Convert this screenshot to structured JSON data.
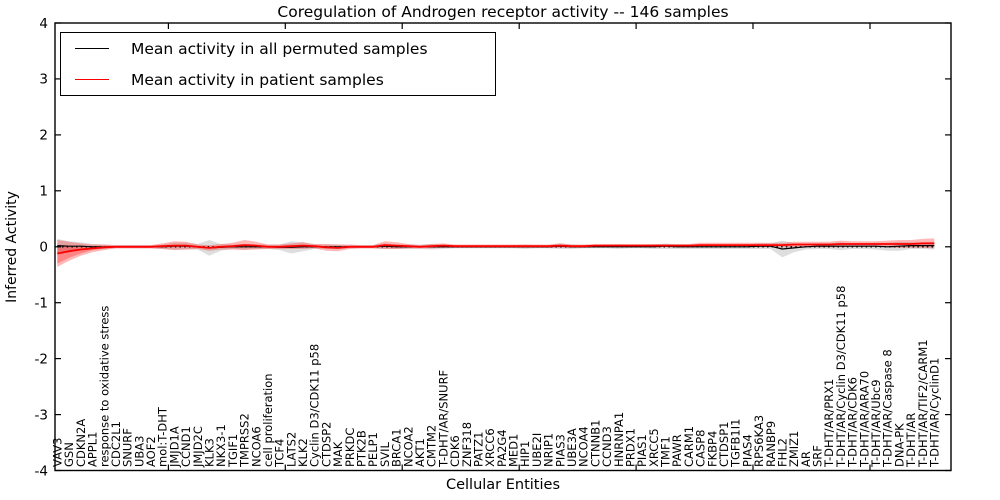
{
  "chart_data": {
    "type": "line",
    "title": "Coregulation of Androgen receptor activity -- 146 samples",
    "xlabel": "Cellular Entities",
    "ylabel": "Inferred Activity",
    "ylim": [
      -4,
      4
    ],
    "ytick_values": [
      4,
      3,
      2,
      1,
      0,
      -1,
      -2,
      -3,
      -4
    ],
    "ytick_labels": [
      "4",
      "3",
      "2",
      "1",
      "0",
      "-1",
      "-2",
      "-3",
      "-4"
    ],
    "xtick_entity_positions": [
      9.5,
      19.5,
      29.5,
      39.5,
      49.5,
      59.5,
      69.5
    ],
    "grid": false,
    "legend_position": "upper left",
    "legend": [
      {
        "label": "Mean activity in all permuted samples",
        "color": "#000000"
      },
      {
        "label": "Mean activity in patient samples",
        "color": "#ff0000"
      }
    ],
    "colors": {
      "permuted_line": "#000000",
      "patient_line": "#ff0000",
      "permuted_fill": "rgba(0,0,0,0.13)",
      "patient_fill": "rgba(255,0,0,0.28)",
      "zero_line": "#000000"
    },
    "entities": [
      "VAV3",
      "GSN",
      "CDKN2A",
      "APPL1",
      "response to oxidative stress",
      "CDC2L1",
      "SNURF",
      "UBA3",
      "AOF2",
      "mol:T-DHT",
      "JMJD1A",
      "CCND1",
      "JMJD2C",
      "KLK3",
      "NKX3-1",
      "TGIF1",
      "TMPRSS2",
      "NCOA6",
      "cell proliferation",
      "TCF4",
      "LATS2",
      "KLK2",
      "Cyclin D3/CDK11 p58",
      "CTDSP2",
      "MAK",
      "PRKDC",
      "PTK2B",
      "PELP1",
      "SVIL",
      "BRCA1",
      "NCOA2",
      "AKT1",
      "CMTM2",
      "T-DHT/AR/SNURF",
      "CDK6",
      "ZNF318",
      "PATZ1",
      "XRCC6",
      "PA2G4",
      "MED1",
      "HIP1",
      "UBE2I",
      "NRIP1",
      "PIAS3",
      "UBE3A",
      "NCOA4",
      "CTNNB1",
      "CCND3",
      "HNRNPA1",
      "PRDX1",
      "PIAS1",
      "XRCC5",
      "TMF1",
      "PAWR",
      "CARM1",
      "CASP8",
      "FKBP4",
      "CTDSP1",
      "TGFB1I1",
      "PIAS4",
      "RPS6KA3",
      "RANBP9",
      "FHL2",
      "ZMIZ1",
      "AR",
      "SRF",
      "T-DHT/AR/PRX1",
      "T-DHT/AR/Cyclin D3/CDK11 p58",
      "T-DHT/AR/CDK6",
      "T-DHT/AR/ARA70",
      "T-DHT/AR/Ubc9",
      "T-DHT/AR/Caspase 8",
      "DNA-PK",
      "T-DHT/AR",
      "T-DHT/AR/TIF2/CARM1",
      "T-DHT/AR/CyclinD1"
    ],
    "series": {
      "permuted_mean": [
        0.02,
        0.01,
        0.01,
        0,
        0,
        0,
        0,
        0,
        0,
        0,
        0.01,
        0.01,
        0,
        -0.02,
        -0.01,
        0,
        0,
        0,
        0,
        -0.01,
        -0.01,
        0,
        0,
        0,
        0,
        0,
        0,
        0,
        0.01,
        0,
        0,
        0,
        0,
        0,
        0,
        0,
        0,
        0,
        0,
        0,
        0,
        0,
        0,
        0.01,
        0,
        0,
        0,
        0,
        0,
        0,
        0,
        0,
        0.01,
        0,
        0,
        0,
        0,
        0,
        0,
        0,
        0.01,
        0.01,
        -0.04,
        -0.02,
        0,
        0.01,
        0.01,
        0.01,
        0.01,
        0.01,
        0.01,
        0,
        0.01,
        0.02,
        0.02,
        0.02
      ],
      "permuted_half": [
        0.12,
        0.09,
        0.07,
        0.05,
        0.04,
        0.03,
        0.03,
        0.03,
        0.03,
        0.04,
        0.06,
        0.06,
        0.05,
        0.14,
        0.06,
        0.04,
        0.05,
        0.04,
        0.04,
        0.05,
        0.11,
        0.08,
        0.04,
        0.04,
        0.04,
        0.03,
        0.03,
        0.03,
        0.05,
        0.04,
        0.04,
        0.04,
        0.05,
        0.04,
        0.03,
        0.03,
        0.03,
        0.03,
        0.03,
        0.03,
        0.04,
        0.03,
        0.03,
        0.05,
        0.04,
        0.03,
        0.03,
        0.03,
        0.04,
        0.03,
        0.03,
        0.04,
        0.05,
        0.04,
        0.04,
        0.04,
        0.04,
        0.04,
        0.04,
        0.04,
        0.05,
        0.05,
        0.15,
        0.08,
        0.05,
        0.05,
        0.05,
        0.07,
        0.05,
        0.05,
        0.06,
        0.07,
        0.08,
        0.06,
        0.06,
        0.07
      ],
      "patient_mean": [
        -0.12,
        -0.08,
        -0.05,
        -0.03,
        -0.01,
        0,
        0,
        0,
        0,
        0.01,
        0.02,
        0.02,
        0,
        -0.02,
        0,
        0.01,
        0.03,
        0.02,
        0,
        0,
        0.01,
        0.02,
        0.01,
        -0.01,
        -0.02,
        0,
        0,
        0,
        0.03,
        0.02,
        0.01,
        0,
        0.01,
        0.02,
        0.01,
        0.01,
        0.01,
        0.01,
        0.01,
        0.01,
        0.01,
        0.01,
        0.01,
        0.02,
        0.01,
        0.01,
        0.02,
        0.02,
        0.02,
        0.02,
        0.02,
        0.02,
        0.02,
        0.02,
        0.02,
        0.03,
        0.03,
        0.03,
        0.03,
        0.03,
        0.03,
        0.03,
        0.03,
        0.04,
        0.04,
        0.04,
        0.04,
        0.05,
        0.05,
        0.05,
        0.05,
        0.05,
        0.05,
        0.05,
        0.06,
        0.06
      ],
      "patient_half": [
        0.24,
        0.17,
        0.11,
        0.07,
        0.05,
        0.03,
        0.03,
        0.03,
        0.03,
        0.05,
        0.08,
        0.07,
        0.04,
        0.05,
        0.05,
        0.06,
        0.09,
        0.07,
        0.04,
        0.04,
        0.05,
        0.06,
        0.04,
        0.06,
        0.06,
        0.04,
        0.03,
        0.03,
        0.07,
        0.06,
        0.04,
        0.03,
        0.04,
        0.04,
        0.03,
        0.03,
        0.03,
        0.03,
        0.03,
        0.03,
        0.03,
        0.03,
        0.03,
        0.04,
        0.03,
        0.03,
        0.03,
        0.03,
        0.03,
        0.03,
        0.03,
        0.03,
        0.03,
        0.03,
        0.03,
        0.04,
        0.04,
        0.04,
        0.04,
        0.04,
        0.04,
        0.04,
        0.04,
        0.05,
        0.05,
        0.05,
        0.05,
        0.06,
        0.05,
        0.05,
        0.05,
        0.06,
        0.07,
        0.07,
        0.08,
        0.09
      ],
      "left_wedge": {
        "upper": [
          0.02,
          0,
          -0.01,
          -0.01,
          0,
          0,
          0
        ],
        "lower": [
          -0.3,
          -0.2,
          -0.12,
          -0.06,
          -0.03,
          -0.01,
          0
        ]
      }
    }
  }
}
